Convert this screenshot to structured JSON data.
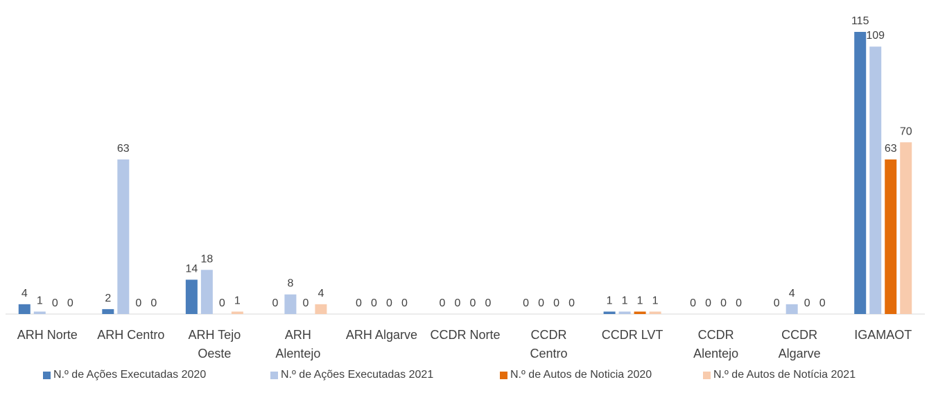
{
  "chart_data": {
    "type": "bar",
    "categories": [
      [
        "ARH Norte"
      ],
      [
        "ARH Centro"
      ],
      [
        "ARH Tejo",
        "Oeste"
      ],
      [
        "ARH",
        "Alentejo"
      ],
      [
        "ARH Algarve"
      ],
      [
        "CCDR Norte"
      ],
      [
        "CCDR",
        "Centro"
      ],
      [
        "CCDR LVT"
      ],
      [
        "CCDR",
        "Alentejo"
      ],
      [
        "CCDR",
        "Algarve"
      ],
      [
        "IGAMAOT"
      ]
    ],
    "series": [
      {
        "name": "N.º de Ações Executadas 2020",
        "color": "#4a7ebb",
        "values": [
          4,
          2,
          14,
          0,
          0,
          0,
          0,
          1,
          0,
          0,
          115
        ]
      },
      {
        "name": "N.º de Ações Executadas 2021",
        "color": "#b4c7e7",
        "values": [
          1,
          63,
          18,
          8,
          0,
          0,
          0,
          1,
          0,
          4,
          109
        ]
      },
      {
        "name": "N.º de Autos de Noticia 2020",
        "color": "#e36c0a",
        "values": [
          0,
          0,
          0,
          0,
          0,
          0,
          0,
          1,
          0,
          0,
          63
        ]
      },
      {
        "name": "N.º de Autos de Notícia 2021",
        "color": "#f8cbad",
        "values": [
          0,
          0,
          1,
          4,
          0,
          0,
          0,
          1,
          0,
          0,
          70
        ]
      }
    ],
    "ylim": [
      0,
      115
    ],
    "legend_position": "bottom",
    "grid": false
  }
}
